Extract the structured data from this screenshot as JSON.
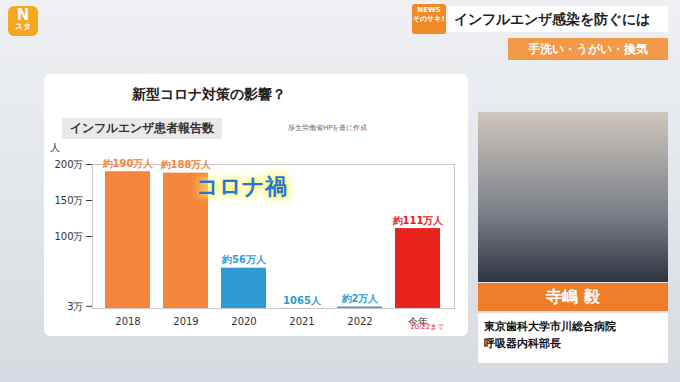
{
  "chart_data": {
    "type": "bar",
    "title": "インフルエンザ患者報告数",
    "subtitle": "新型コロナ対策の影響？",
    "annotations": [
      "厚生労働省HPを基に作成",
      "コロナ禍",
      "10/22まで"
    ],
    "y_label": "人",
    "categories": [
      "2018",
      "2019",
      "2020",
      "2021",
      "2022",
      "今年"
    ],
    "values": [
      1900000,
      1880000,
      560000,
      1065,
      20000,
      1110000
    ],
    "value_labels": [
      "約190万人",
      "約188万人",
      "約56万人",
      "1065人",
      "約2万人",
      "約111万人"
    ],
    "colors": [
      "#f4863b",
      "#f4863b",
      "#2e9bd6",
      "#2e9bd6",
      "#2e9bd6",
      "#e8231e"
    ],
    "ylim": [
      0,
      2000000
    ],
    "yticks": [
      {
        "value": 30000,
        "label": "3万"
      },
      {
        "value": 1000000,
        "label": "100万"
      },
      {
        "value": 1500000,
        "label": "150万"
      },
      {
        "value": 2000000,
        "label": "200万"
      }
    ],
    "grid": false,
    "data_labels": true
  },
  "screen": {
    "logo": [
      "N",
      "スタ"
    ],
    "badge": [
      "NEWS",
      "そのサキ!"
    ],
    "headline": "インフルエンザ感染を防ぐには",
    "subheadline": "手洗い・うがい・換気",
    "speaker": "寺嶋 毅",
    "affiliation": [
      "東京歯科大学市川総合病院",
      "呼吸器内科部長"
    ]
  }
}
